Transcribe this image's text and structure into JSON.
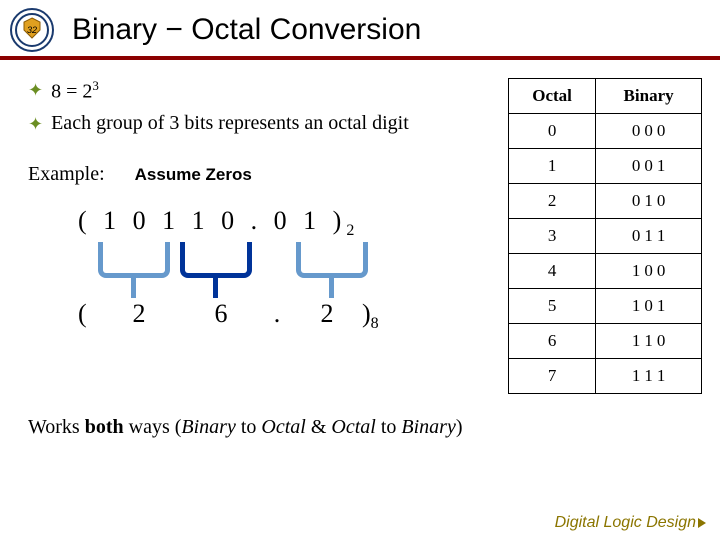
{
  "title": "Binary − Octal Conversion",
  "bullets": {
    "line1_pre": "8 = 2",
    "line1_sup": "3",
    "line2": "Each group of 3 bits represents an octal digit"
  },
  "example_label": "Example:",
  "assume_label": "Assume Zeros",
  "binary_number": {
    "open": "( ",
    "g1": "1 0 1",
    "g2": "1 0 .",
    "g2_dot": "",
    "g3": "0 1",
    "close_paren": " )",
    "sub": "2",
    "full": "( 1 0 1 1 0 . 0 1 )"
  },
  "octal_number": {
    "open": "( ",
    "d1": "2",
    "d2": "6",
    "dot": ".",
    "d3": "2",
    "close": " )",
    "sub": "8"
  },
  "bracket_colors": {
    "outer": "#6699cc",
    "inner": "#003399"
  },
  "table": {
    "headers": [
      "Octal",
      "Binary"
    ],
    "rows": [
      {
        "o": "0",
        "b": [
          "0",
          "0",
          "0"
        ]
      },
      {
        "o": "1",
        "b": [
          "0",
          "0",
          "1"
        ]
      },
      {
        "o": "2",
        "b": [
          "0",
          "1",
          "0"
        ]
      },
      {
        "o": "3",
        "b": [
          "0",
          "1",
          "1"
        ]
      },
      {
        "o": "4",
        "b": [
          "1",
          "0",
          "0"
        ]
      },
      {
        "o": "5",
        "b": [
          "1",
          "0",
          "1"
        ]
      },
      {
        "o": "6",
        "b": [
          "1",
          "1",
          "0"
        ]
      },
      {
        "o": "7",
        "b": [
          "1",
          "1",
          "1"
        ]
      }
    ]
  },
  "footer": {
    "pre": "Works ",
    "bold": "both",
    "mid": " ways (",
    "i1": "Binary",
    "mid2": " to ",
    "i2": "Octal",
    "mid3": " & ",
    "i3": "Octal",
    "mid4": " to ",
    "i4": "Binary",
    "post": ")"
  },
  "brand": "Digital Logic Design",
  "colors": {
    "rule": "#8b0000",
    "bullet": "#6b8e23",
    "brand": "#8b7500"
  }
}
